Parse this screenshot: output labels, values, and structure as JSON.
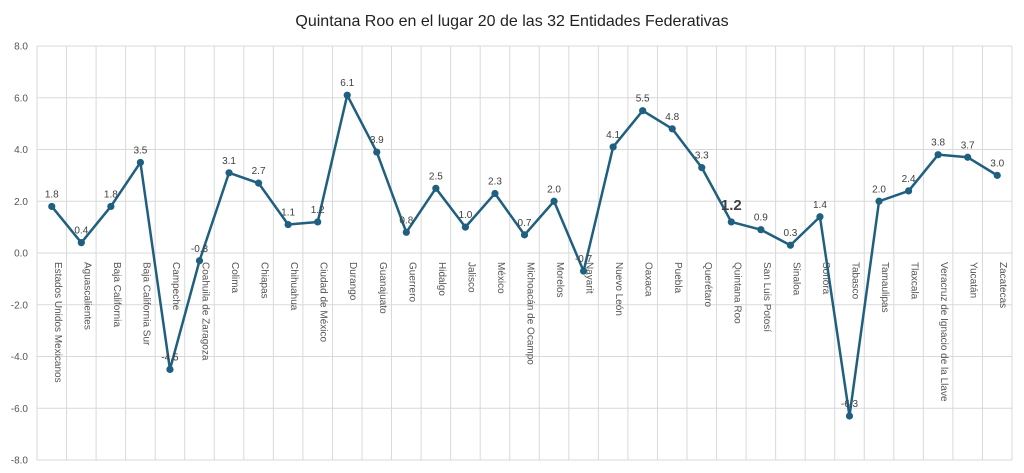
{
  "chart_data": {
    "type": "line",
    "title": "Quintana Roo en el lugar 20 de las 32 Entidades Federativas",
    "xlabel": "",
    "ylabel": "",
    "ylim": [
      -8,
      8
    ],
    "yticks": [
      "-8.0",
      "-6.0",
      "-4.0",
      "-2.0",
      "0.0",
      "2.0",
      "4.0",
      "6.0",
      "8.0"
    ],
    "grid": true,
    "legend": "none",
    "categories": [
      "Estados Unidos Mexicanos",
      "Aguascalientes",
      "Baja California",
      "Baja California Sur",
      "Campeche",
      "Coahuila de Zaragoza",
      "Colima",
      "Chiapas",
      "Chihuahua",
      "Ciudad de México",
      "Durango",
      "Guanajuato",
      "Guerrero",
      "Hidalgo",
      "Jalisco",
      "México",
      "Michoacán de Ocampo",
      "Morelos",
      "Nayarit",
      "Nuevo León",
      "Oaxaca",
      "Puebla",
      "Querétaro",
      "Quintana Roo",
      "San Luis Potosí",
      "Sinaloa",
      "Sonora",
      "Tabasco",
      "Tamaulipas",
      "Tlaxcala",
      "Veracruz de Ignacio de la Llave",
      "Yucatán",
      "Zacatecas"
    ],
    "series": [
      {
        "values": [
          1.8,
          0.4,
          1.8,
          3.5,
          -4.5,
          -0.3,
          3.1,
          2.7,
          1.1,
          1.2,
          6.1,
          3.9,
          0.8,
          2.5,
          1.0,
          2.3,
          0.7,
          2.0,
          -0.7,
          4.1,
          5.5,
          4.8,
          3.3,
          1.2,
          0.9,
          0.3,
          1.4,
          -6.3,
          2.0,
          2.4,
          3.8,
          3.7,
          3.0
        ],
        "labels": [
          "1.8",
          "0.4",
          "1.8",
          "3.5",
          "-4.5",
          "-0.3",
          "3.1",
          "2.7",
          "1.1",
          "1.2",
          "6.1",
          "3.9",
          "0.8",
          "2.5",
          "1.0",
          "2.3",
          "0.7",
          "2.0",
          "-0.7",
          "4.1",
          "5.5",
          "4.8",
          "3.3",
          "1.2",
          "0.9",
          "0.3",
          "1.4",
          "-6.3",
          "2.0",
          "2.4",
          "3.8",
          "3.7",
          "3.0"
        ]
      }
    ],
    "highlight_index": 23,
    "colors": {
      "line": "#1f5f7f",
      "grid": "#d9d9d9",
      "text": "#555555"
    }
  }
}
